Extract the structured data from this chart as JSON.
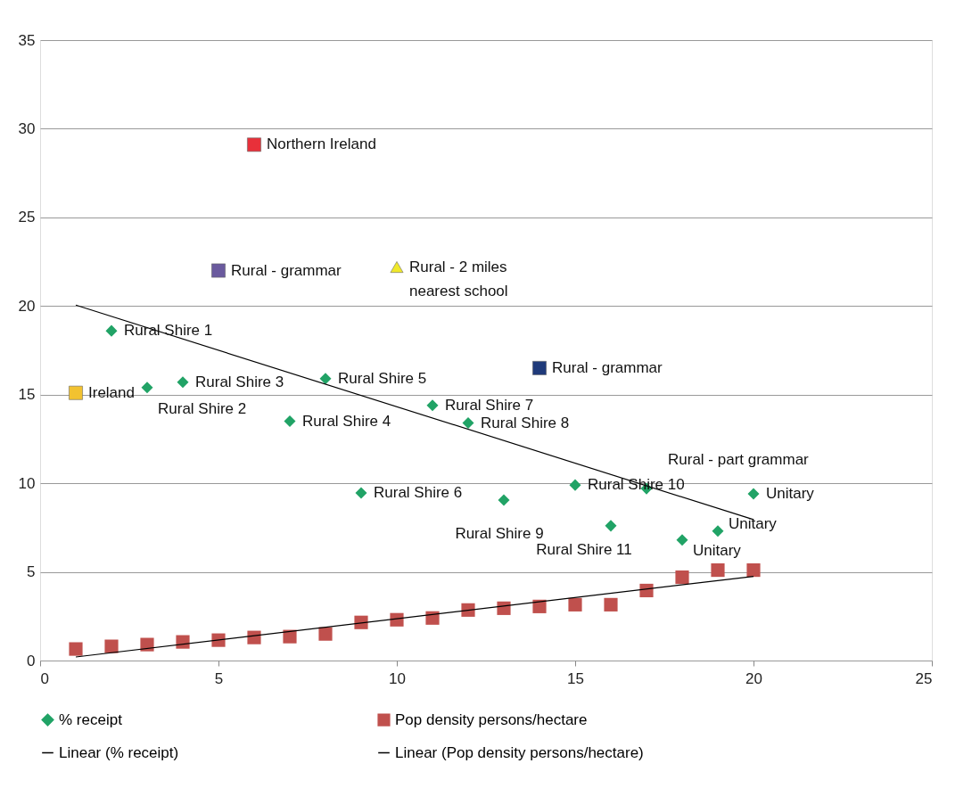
{
  "chart_data": {
    "type": "scatter",
    "xlim": [
      0,
      25
    ],
    "xticks": [
      0,
      5,
      10,
      15,
      20,
      25
    ],
    "ylim": [
      0,
      35
    ],
    "yticks": [
      0,
      5,
      10,
      15,
      20,
      25,
      30,
      35
    ],
    "grid": "y",
    "legend": "bottom",
    "series": [
      {
        "name": "% receipt",
        "marker": "diamond",
        "color": "#21a366",
        "x": [
          2,
          3,
          4,
          7,
          8,
          9,
          11,
          12,
          13,
          15,
          16,
          17,
          18,
          19,
          20
        ],
        "values": [
          18.6,
          15.4,
          15.7,
          13.5,
          15.9,
          9.45,
          14.4,
          13.4,
          9.05,
          9.9,
          7.6,
          9.7,
          6.8,
          7.3,
          9.4
        ]
      },
      {
        "name": "Pop density persons/hectare",
        "marker": "square",
        "color": "#c0504d",
        "x": [
          1,
          2,
          3,
          4,
          5,
          6,
          7,
          8,
          9,
          10,
          11,
          12,
          13,
          14,
          15,
          16,
          17,
          18,
          19,
          20
        ],
        "values": [
          0.65,
          0.8,
          0.9,
          1.05,
          1.15,
          1.3,
          1.35,
          1.5,
          2.15,
          2.3,
          2.4,
          2.85,
          2.95,
          3.05,
          3.15,
          3.15,
          3.95,
          4.7,
          5.1,
          5.1
        ]
      },
      {
        "name": "Linear (% receipt)",
        "type": "line",
        "marker": "none",
        "color": "#000000",
        "x": [
          1,
          20
        ],
        "values": [
          20.05,
          7.95
        ]
      },
      {
        "name": "Linear (Pop density persons/hectare)",
        "type": "line",
        "marker": "none",
        "color": "#000000",
        "x": [
          1,
          20
        ],
        "values": [
          0.2,
          4.75
        ]
      },
      {
        "marker": "square",
        "color": "#e8303a",
        "x": [
          6
        ],
        "values": [
          29.1
        ]
      },
      {
        "marker": "square",
        "color": "#6a5a9e",
        "x": [
          5
        ],
        "values": [
          22
        ]
      },
      {
        "marker": "triangle",
        "color": "#f0e82a",
        "x": [
          10
        ],
        "values": [
          22.2
        ]
      },
      {
        "marker": "square",
        "color": "#1f3a7a",
        "x": [
          14
        ],
        "values": [
          16.5
        ]
      },
      {
        "marker": "square",
        "color": "#f2c230",
        "x": [
          1
        ],
        "values": [
          15.1
        ]
      }
    ],
    "annotations": [
      {
        "text": "Northern Ireland",
        "x": 6,
        "y": 29.1
      },
      {
        "text": "Rural - grammar",
        "x": 5,
        "y": 22
      },
      {
        "text": "Rural - 2 miles\nnearest school",
        "x": 10,
        "y": 22.2
      },
      {
        "text": "Rural - grammar",
        "x": 14,
        "y": 16.5
      },
      {
        "text": "Ireland",
        "x": 1,
        "y": 15.1
      },
      {
        "text": "Rural Shire 1",
        "x": 2,
        "y": 18.6
      },
      {
        "text": "Rural Shire 2",
        "x": 3,
        "y": 15.4
      },
      {
        "text": "Rural Shire 3",
        "x": 4,
        "y": 15.7
      },
      {
        "text": "Rural Shire 4",
        "x": 7,
        "y": 13.5
      },
      {
        "text": "Rural Shire 5",
        "x": 8,
        "y": 15.9
      },
      {
        "text": "Rural Shire 6",
        "x": 9,
        "y": 9.45
      },
      {
        "text": "Rural Shire 7",
        "x": 11,
        "y": 14.4
      },
      {
        "text": "Rural Shire 8",
        "x": 12,
        "y": 13.4
      },
      {
        "text": "Rural Shire 9",
        "x": 13,
        "y": 9.05
      },
      {
        "text": "Rural Shire 10",
        "x": 15,
        "y": 9.9
      },
      {
        "text": "Rural Shire 11",
        "x": 16,
        "y": 7.6
      },
      {
        "text": "Rural - part grammar",
        "x": 17,
        "y": 9.7
      },
      {
        "text": "Unitary",
        "x": 20,
        "y": 9.4
      },
      {
        "text": "Unitary",
        "x": 19,
        "y": 7.3
      },
      {
        "text": "Unitary",
        "x": 18,
        "y": 6.8
      }
    ]
  }
}
